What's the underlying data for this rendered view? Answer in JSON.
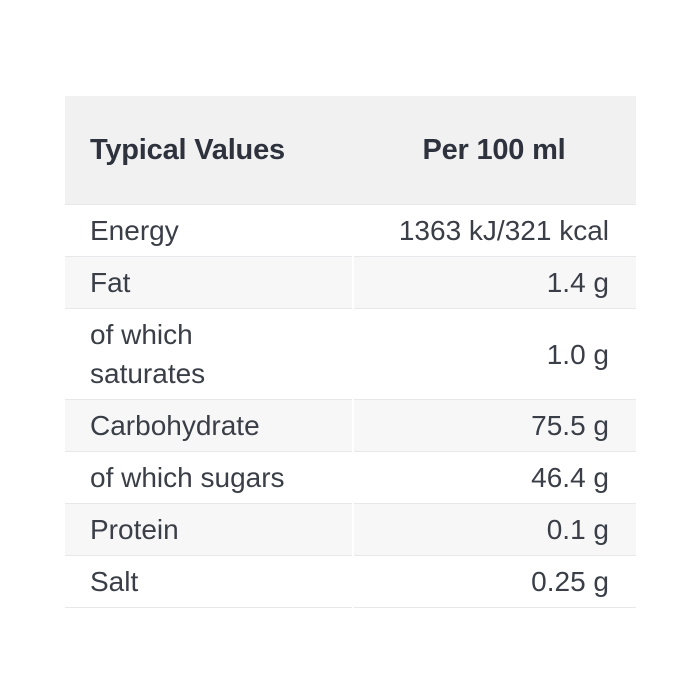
{
  "table": {
    "header": {
      "label": "Typical Values",
      "value": "Per 100 ml"
    },
    "rows": [
      {
        "label": "Energy",
        "value": "1363 kJ/321 kcal"
      },
      {
        "label": "Fat",
        "value": "1.4 g"
      },
      {
        "label": "of which\nsaturates",
        "value": "1.0 g"
      },
      {
        "label": "Carbohydrate",
        "value": "75.5 g"
      },
      {
        "label": "of which sugars",
        "value": "46.4 g"
      },
      {
        "label": "Protein",
        "value": "0.1 g"
      },
      {
        "label": "Salt",
        "value": "0.25 g"
      }
    ]
  },
  "colors": {
    "page_background": "#ffffff",
    "header_background": "#f1f1f2",
    "alt_row_background": "#f7f7f8",
    "border": "#e8e8ea",
    "header_text": "#2e323d",
    "body_text": "#3a3e47"
  }
}
